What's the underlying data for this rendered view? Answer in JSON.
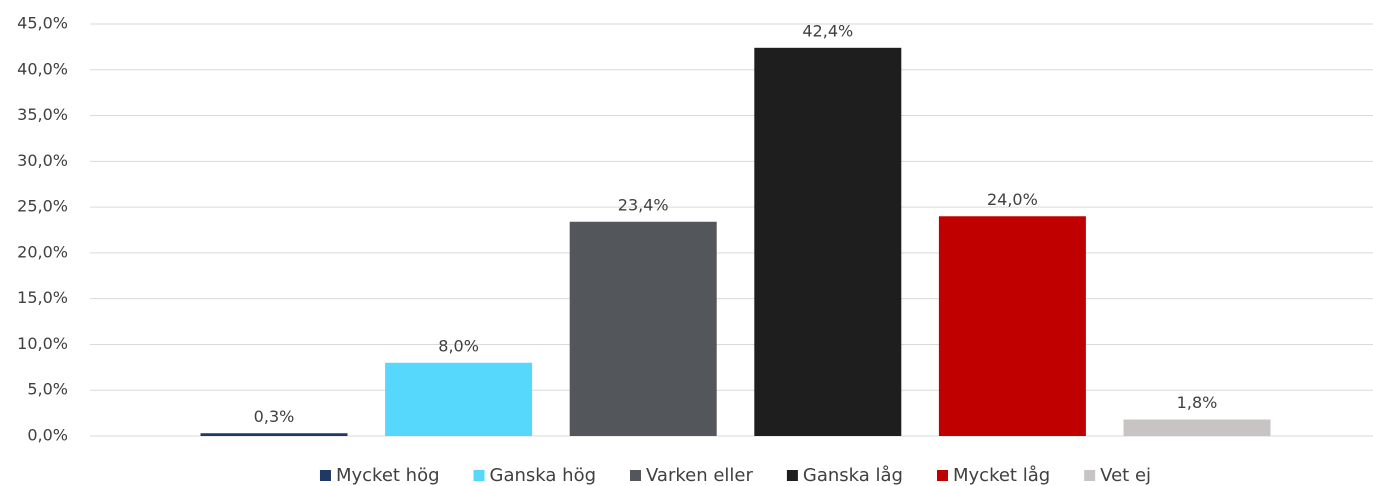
{
  "chart_data": {
    "type": "bar",
    "series": [
      {
        "name": "Mycket hög",
        "color": "#1f3864",
        "values": [
          0.3
        ],
        "value_labels": [
          "0,3%"
        ]
      },
      {
        "name": "Ganska hög",
        "color": "#56d8fc",
        "values": [
          8.0
        ],
        "value_labels": [
          "8,0%"
        ]
      },
      {
        "name": "Varken eller",
        "color": "#53565b",
        "values": [
          23.4
        ],
        "value_labels": [
          "23,4%"
        ]
      },
      {
        "name": "Ganska låg",
        "color": "#1e1e1e",
        "values": [
          42.4
        ],
        "value_labels": [
          "42,4%"
        ]
      },
      {
        "name": "Mycket låg",
        "color": "#c00000",
        "values": [
          24.0
        ],
        "value_labels": [
          "24,0%"
        ]
      },
      {
        "name": "Vet ej",
        "color": "#c8c4c4",
        "values": [
          1.8
        ],
        "value_labels": [
          "1,8%"
        ]
      }
    ],
    "ylim": [
      0,
      45
    ],
    "yticks": [
      {
        "value": 0,
        "label": "0,0%"
      },
      {
        "value": 5,
        "label": "5,0%"
      },
      {
        "value": 10,
        "label": "10,0%"
      },
      {
        "value": 15,
        "label": "15,0%"
      },
      {
        "value": 20,
        "label": "20,0%"
      },
      {
        "value": 25,
        "label": "25,0%"
      },
      {
        "value": 30,
        "label": "30,0%"
      },
      {
        "value": 35,
        "label": "35,0%"
      },
      {
        "value": 40,
        "label": "40,0%"
      },
      {
        "value": 45,
        "label": "45,0%"
      }
    ],
    "grid": true,
    "legend": "bottom"
  }
}
